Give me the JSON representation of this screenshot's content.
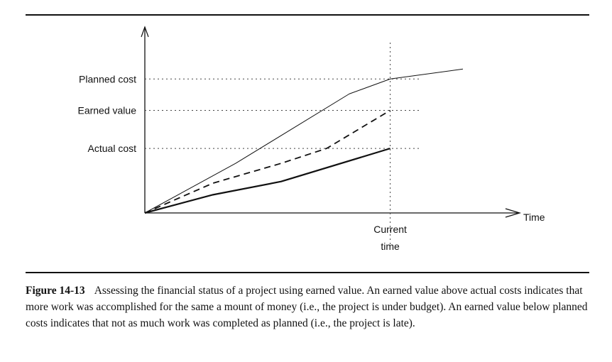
{
  "chart_data": {
    "type": "line",
    "title": "",
    "xlabel": "Time",
    "ylabel": "",
    "x_marker": {
      "label_line1": "Current",
      "label_line2": "time"
    },
    "reference_labels": [
      "Planned cost",
      "Earned value",
      "Actual cost"
    ],
    "series": [
      {
        "name": "Planned cost",
        "style": "solid-thin",
        "points": [
          [
            0,
            0
          ],
          [
            2,
            3
          ],
          [
            4.5,
            7.2
          ],
          [
            5.4,
            8.1
          ],
          [
            7,
            8.7
          ]
        ]
      },
      {
        "name": "Earned value",
        "style": "dashed",
        "points": [
          [
            0,
            0
          ],
          [
            1.5,
            1.8
          ],
          [
            3,
            3
          ],
          [
            4,
            3.9
          ],
          [
            5.4,
            6.2
          ]
        ]
      },
      {
        "name": "Actual cost",
        "style": "solid-thick",
        "points": [
          [
            0,
            0
          ],
          [
            1.5,
            1.1
          ],
          [
            3,
            1.9
          ],
          [
            5.4,
            3.9
          ]
        ]
      }
    ],
    "current_time_x": 5.4,
    "xlim": [
      0,
      8
    ],
    "ylim": [
      0,
      10
    ],
    "grid": false
  },
  "caption": {
    "figure_label": "Figure 14-13",
    "text": "Assessing the financial status of a project using earned value. An earned value above actual costs indicates that more work was accomplished for the same a mount of money (i.e., the project is under budget). An earned value below planned costs indicates that not as much work was completed as planned (i.e., the project is late)."
  }
}
